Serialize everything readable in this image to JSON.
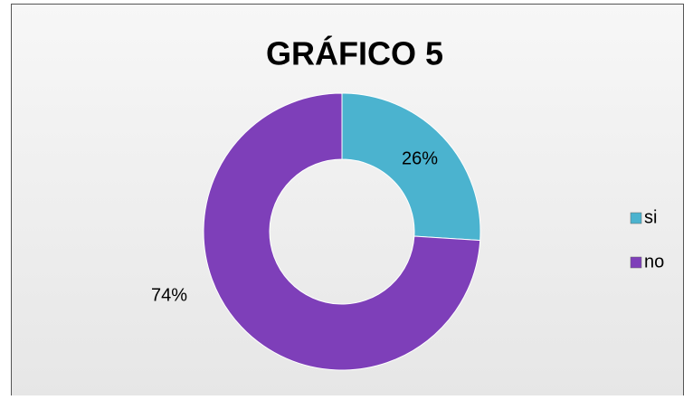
{
  "chart_data": {
    "type": "donut",
    "title": "GRÁFICO 5",
    "categories": [
      "si",
      "no"
    ],
    "values": [
      26,
      74
    ],
    "value_labels": [
      "26%",
      "74%"
    ],
    "colors": [
      "#4bb3cf",
      "#7e3fb9"
    ],
    "legend": "right"
  }
}
